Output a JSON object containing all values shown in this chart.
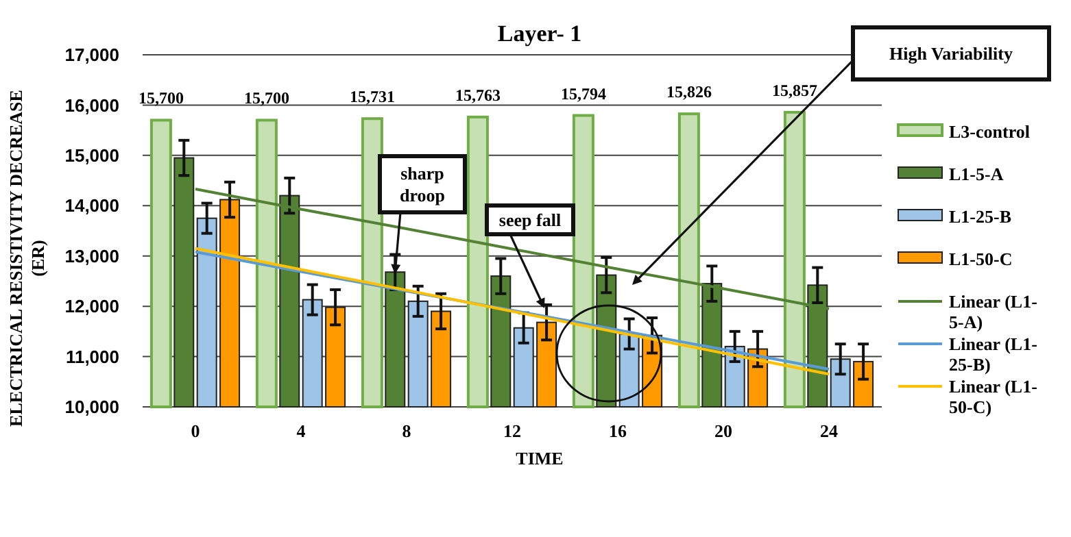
{
  "chart_data": {
    "type": "bar",
    "title": "Layer- 1",
    "xlabel": "TIME",
    "ylabel": "ELECTRICAL RESISTIVITY DECREASE (ER)",
    "categories": [
      "0",
      "4",
      "8",
      "12",
      "16",
      "20",
      "24"
    ],
    "ylim": [
      10000,
      17000
    ],
    "yticks": [
      {
        "value": 10000,
        "label": "10,000"
      },
      {
        "value": 11000,
        "label": "11,000"
      },
      {
        "value": 12000,
        "label": "12,000"
      },
      {
        "value": 13000,
        "label": "13,000"
      },
      {
        "value": 14000,
        "label": "14,000"
      },
      {
        "value": 15000,
        "label": "15,000"
      },
      {
        "value": 16000,
        "label": "16,000"
      },
      {
        "value": 17000,
        "label": "17,000"
      }
    ],
    "grid": "y",
    "legend": "right",
    "series": [
      {
        "name": "L3-control",
        "color": "#c6e0b4",
        "values": [
          15700,
          15700,
          15731,
          15763,
          15794,
          15826,
          15857
        ],
        "value_labels": [
          "15,700",
          "15,700",
          "15,731",
          "15,763",
          "15,794",
          "15,826",
          "15,857"
        ]
      },
      {
        "name": "L1-5-A",
        "color": "#548235",
        "values": [
          14950,
          14200,
          12680,
          12600,
          12620,
          12450,
          12420
        ],
        "errors": [
          350,
          350,
          350,
          350,
          350,
          350,
          350
        ]
      },
      {
        "name": "L1-25-B",
        "color": "#9dc3e6",
        "values": [
          13750,
          12130,
          12100,
          11570,
          11450,
          11200,
          10950
        ],
        "errors": [
          300,
          300,
          300,
          300,
          300,
          300,
          300
        ]
      },
      {
        "name": "L1-50-C",
        "color": "#ff9900",
        "values": [
          14120,
          11980,
          11900,
          11680,
          11420,
          11150,
          10900
        ],
        "errors": [
          350,
          350,
          350,
          350,
          350,
          350,
          350
        ]
      },
      {
        "name": "Linear (L1-5-A)",
        "type": "line",
        "color": "#548235",
        "values": [
          14330,
          13930,
          13540,
          13140,
          12740,
          12350,
          11950
        ]
      },
      {
        "name": "Linear (L1-25-B)",
        "type": "line",
        "color": "#5b9bd5",
        "values": [
          13080,
          12690,
          12300,
          11920,
          11530,
          11140,
          10750
        ]
      },
      {
        "name": "Linear (L1-50-C)",
        "type": "line",
        "color": "#ffc000",
        "values": [
          13150,
          12730,
          12320,
          11900,
          11480,
          11070,
          10650
        ]
      }
    ],
    "annotations": [
      "sharp droop",
      "seep fall",
      "High Variability"
    ]
  }
}
